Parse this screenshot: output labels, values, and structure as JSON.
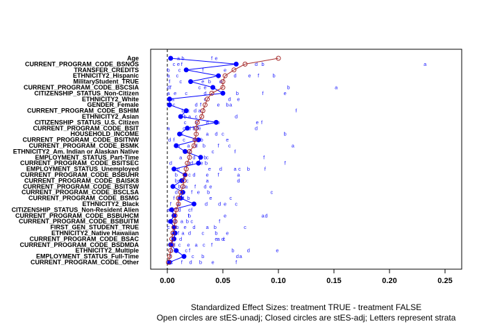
{
  "chart_data": {
    "type": "scatter",
    "xlabel": "Standardized Effect Sizes: treatment TRUE - treatment  FALSE",
    "subtitle": "Open circles are stES-unadj; Closed circles are stES-adj; Letters represent strata",
    "xlim": [
      -0.015,
      0.265
    ],
    "xticks": [
      "0.00",
      "0.05",
      "0.10",
      "0.15",
      "0.20",
      "0.25"
    ],
    "xtick_values": [
      0,
      0.05,
      0.1,
      0.15,
      0.2,
      0.25
    ],
    "reference_line": 0,
    "colors": {
      "unadjusted": "#a52a2a",
      "adjusted": "#0000ff",
      "strata": "#1a1aff",
      "reference": "#000000"
    },
    "covariates": [
      "Age",
      "CURRENT_PROGRAM_CODE_BSNOS",
      "TRANSFER_CREDITS",
      "ETHNICITY2_Hispanic",
      "MilitaryStudent_TRUE",
      "CURRENT_PROGRAM_CODE_BSCSIA",
      "CITIZENSHIP_STATUS_Non-Citizen",
      "ETHNICITY2_White",
      "GENDER_Female",
      "CURRENT_PROGRAM_CODE_BSHIM",
      "ETHNICITY2_Asian",
      "CITIZENSHIP_STATUS_U.S. Citizen",
      "CURRENT_PROGRAM_CODE_BSIT",
      "HOUSEHOLD_INCOME",
      "CURRENT_PROGRAM_CODE_BSITNW",
      "CURRENT_PROGRAM_CODE_BSMK",
      "ETHNICITY2_Am. Indian or Alaskan Native",
      "EMPLOYMENT_STATUS_Part-Time",
      "CURRENT_PROGRAM_CODE_BSITSEC",
      "EMPLOYMENT_STATUS_Unemployed",
      "CURRENT_PROGRAM_CODE_BSBUHR",
      "CURRENT_PROGRAM_CODE_BAISK8",
      "CURRENT_PROGRAM_CODE_BSITSW",
      "CURRENT_PROGRAM_CODE_BSCLSA",
      "CURRENT_PROGRAM_CODE_BSMG",
      "ETHNICITY2_Black",
      "CITIZENSHIP_STATUS_Non-Resident Alien",
      "CURRENT_PROGRAM_CODE_BSBUHCM",
      "CURRENT_PROGRAM_CODE_BSBUITM",
      "FIRST_GEN_STUDENT_TRUE",
      "ETHNICITY2_Native Hawaiian",
      "CURRENT_PROGRAM_CODE_BSAC",
      "CURRENT_PROGRAM_CODE_BSDMDA",
      "ETHNICITY2_Multiple",
      "EMPLOYMENT_STATUS_Full-Time",
      "CURRENT_PROGRAM_CODE_Other"
    ],
    "unadjusted": [
      0.1,
      0.07,
      0.06,
      0.052,
      0.05,
      0.05,
      0.04,
      0.036,
      0.034,
      0.032,
      0.031,
      0.027,
      0.026,
      0.026,
      0.025,
      0.024,
      0.02,
      0.02,
      0.018,
      0.017,
      0.016,
      0.015,
      0.014,
      0.012,
      0.01,
      0.01,
      0.008,
      0.007,
      0.007,
      0.006,
      0.005,
      0.004,
      0.004,
      0.003,
      0.002,
      0.001
    ],
    "adjusted": [
      0.003,
      0.062,
      0.017,
      0.046,
      0.021,
      0.041,
      0.05,
      0.002,
      0.002,
      0.017,
      0.012,
      0.044,
      0.018,
      0.011,
      0.028,
      0.008,
      0.016,
      0.03,
      0.028,
      0.006,
      0.016,
      0.013,
      0.005,
      0.014,
      0.012,
      0.024,
      0.004,
      0.006,
      0.003,
      0.006,
      0.007,
      0.006,
      0.003,
      0.008,
      0.015,
      0.002
    ],
    "strata_letters": [
      [
        [
          "a",
          0.01
        ],
        [
          "b",
          0.014
        ],
        [
          "f",
          0.04
        ],
        [
          "e",
          0.044
        ]
      ],
      [
        [
          "c",
          0.006
        ],
        [
          "e",
          0.01
        ],
        [
          "f",
          0.013
        ],
        [
          "d",
          0.08
        ],
        [
          "b",
          0.086
        ],
        [
          "a",
          0.232
        ]
      ],
      [
        [
          "b",
          0.001
        ],
        [
          "c",
          0.011
        ],
        [
          "f",
          0.032
        ],
        [
          "e",
          0.052
        ]
      ],
      [
        [
          "a",
          0.001
        ],
        [
          "c",
          0.009
        ],
        [
          "d",
          0.061
        ],
        [
          "e",
          0.074
        ],
        [
          "f",
          0.082
        ],
        [
          "b",
          0.096
        ]
      ],
      [
        [
          "f",
          0.002
        ],
        [
          "c",
          0.012
        ],
        [
          "e",
          0.032
        ],
        [
          "b",
          0.038
        ],
        [
          "d",
          0.048
        ]
      ],
      [
        [
          "d",
          0.001
        ],
        [
          "f",
          0.003
        ],
        [
          "c",
          0.029
        ],
        [
          "e",
          0.034
        ],
        [
          "b",
          0.109
        ],
        [
          "a",
          0.152
        ]
      ],
      [
        [
          "a",
          0.001
        ],
        [
          "e",
          0.007
        ],
        [
          "c",
          0.017
        ],
        [
          "d",
          0.034
        ],
        [
          "b",
          0.063
        ],
        [
          "f",
          0.086
        ],
        [
          "e",
          0.106
        ]
      ],
      [
        [
          "b",
          0.002
        ],
        [
          "a",
          0.005
        ],
        [
          "c",
          0.034
        ],
        [
          "d",
          0.056
        ],
        [
          "e",
          0.064
        ]
      ],
      [
        [
          "c",
          0.006
        ],
        [
          "d",
          0.026
        ],
        [
          "f",
          0.03
        ],
        [
          "e",
          0.046
        ],
        [
          "b",
          0.054
        ],
        [
          "a",
          0.057
        ]
      ],
      [
        [
          "b",
          0.014
        ],
        [
          "c",
          0.019
        ],
        [
          "d",
          0.025
        ],
        [
          "a",
          0.029
        ],
        [
          "f",
          0.116
        ]
      ],
      [
        [
          "b",
          0.016
        ],
        [
          "a",
          0.02
        ],
        [
          "c",
          0.026
        ],
        [
          "d",
          0.062
        ]
      ],
      [
        [
          "c",
          0.016
        ],
        [
          "a",
          0.026
        ],
        [
          "d",
          0.036
        ],
        [
          "b",
          0.046
        ],
        [
          "e",
          0.081
        ],
        [
          "f",
          0.085
        ]
      ],
      [
        [
          "a",
          0.001
        ],
        [
          "c",
          0.015
        ],
        [
          "d",
          0.02
        ],
        [
          "b",
          0.024
        ],
        [
          "f",
          0.027
        ],
        [
          "e",
          0.029
        ],
        [
          "d",
          0.08
        ]
      ],
      [
        [
          "e",
          0.013
        ],
        [
          "a",
          0.036
        ],
        [
          "d",
          0.044
        ],
        [
          "c",
          0.05
        ],
        [
          "b",
          0.106
        ]
      ],
      [
        [
          "d",
          0.002
        ],
        [
          "f",
          0.006
        ],
        [
          "c",
          0.015
        ],
        [
          "a",
          0.024
        ],
        [
          "b",
          0.031
        ],
        [
          "e",
          0.054
        ]
      ],
      [
        [
          "b",
          0.01
        ],
        [
          "a",
          0.019
        ],
        [
          "d",
          0.026
        ],
        [
          "b",
          0.033
        ],
        [
          "f",
          0.046
        ],
        [
          "c",
          0.056
        ],
        [
          "a",
          0.113
        ]
      ],
      [
        [
          "e",
          0.017
        ],
        [
          "a",
          0.018
        ],
        [
          "b",
          0.021
        ],
        [
          "c",
          0.041
        ],
        [
          "f",
          0.061
        ]
      ],
      [
        [
          "a",
          0.012
        ],
        [
          "d",
          0.024
        ],
        [
          "e",
          0.03
        ],
        [
          "b",
          0.034
        ],
        [
          "c",
          0.036
        ],
        [
          "f",
          0.087
        ]
      ],
      [
        [
          "d",
          0.003
        ],
        [
          "c",
          0.02
        ],
        [
          "d",
          0.022
        ],
        [
          "e",
          0.031
        ],
        [
          "b",
          0.035
        ],
        [
          "f",
          0.106
        ]
      ],
      [
        [
          "e",
          0.01
        ],
        [
          "e",
          0.038
        ],
        [
          "d",
          0.048
        ],
        [
          "a",
          0.061
        ],
        [
          "c",
          0.065
        ],
        [
          "b",
          0.073
        ],
        [
          "f",
          0.088
        ]
      ],
      [
        [
          "b",
          0.008
        ],
        [
          "c",
          0.02
        ],
        [
          "d",
          0.024
        ],
        [
          "e",
          0.036
        ],
        [
          "f",
          0.046
        ],
        [
          "a",
          0.064
        ]
      ],
      [
        [
          "b",
          0.008
        ],
        [
          "e",
          0.011
        ],
        [
          "f",
          0.013
        ],
        [
          "c",
          0.018
        ],
        [
          "a",
          0.036
        ],
        [
          "d",
          0.064
        ]
      ],
      [
        [
          "b",
          0.011
        ],
        [
          "c",
          0.015
        ],
        [
          "a",
          0.017
        ],
        [
          "f",
          0.025
        ],
        [
          "d",
          0.034
        ],
        [
          "e",
          0.039
        ]
      ],
      [
        [
          "d",
          0.008
        ],
        [
          "a",
          0.014
        ],
        [
          "f",
          0.022
        ],
        [
          "e",
          0.028
        ],
        [
          "b",
          0.037
        ],
        [
          "c",
          0.094
        ]
      ],
      [
        [
          "f",
          0.006
        ],
        [
          "a",
          0.01
        ],
        [
          "d",
          0.014
        ],
        [
          "b",
          0.019
        ],
        [
          "e",
          0.039
        ],
        [
          "c",
          0.057
        ]
      ],
      [
        [
          "f",
          0.003
        ],
        [
          "a",
          0.01
        ],
        [
          "d",
          0.035
        ],
        [
          "d",
          0.047
        ],
        [
          "e",
          0.052
        ],
        [
          "c",
          0.062
        ]
      ],
      [
        [
          "a",
          0.001
        ],
        [
          "b",
          0.003
        ],
        [
          "e",
          0.005
        ],
        [
          "d",
          0.011
        ],
        [
          "c",
          0.02
        ],
        [
          "f",
          0.022
        ]
      ],
      [
        [
          "d",
          0.007
        ],
        [
          "f",
          0.019
        ],
        [
          "b",
          0.02
        ],
        [
          "e",
          0.052
        ],
        [
          "a",
          0.086
        ],
        [
          "d",
          0.089
        ]
      ],
      [
        [
          "a",
          0.001
        ],
        [
          "d",
          0.007
        ],
        [
          "a",
          0.013
        ],
        [
          "b",
          0.018
        ],
        [
          "c",
          0.022
        ],
        [
          "f",
          0.047
        ]
      ],
      [
        [
          "c",
          0.001
        ],
        [
          "b",
          0.009
        ],
        [
          "e",
          0.016
        ],
        [
          "d",
          0.024
        ],
        [
          "a",
          0.036
        ],
        [
          "b",
          0.043
        ],
        [
          "c",
          0.07
        ]
      ],
      [
        [
          "e",
          0.005
        ],
        [
          "f",
          0.01
        ],
        [
          "a",
          0.014
        ],
        [
          "d",
          0.02
        ],
        [
          "c",
          0.032
        ],
        [
          "b",
          0.044
        ],
        [
          "e",
          0.054
        ]
      ],
      [
        [
          "b",
          0.005
        ],
        [
          "d",
          0.012
        ],
        [
          "e",
          0.044
        ],
        [
          "a",
          0.046
        ],
        [
          "d",
          0.05
        ],
        [
          "c",
          0.051
        ]
      ],
      [
        [
          "b",
          0.004
        ],
        [
          "d",
          0.006
        ],
        [
          "c",
          0.011
        ],
        [
          "e",
          0.019
        ],
        [
          "a",
          0.026
        ],
        [
          "c",
          0.033
        ],
        [
          "f",
          0.04
        ]
      ],
      [
        [
          "a",
          0.004
        ],
        [
          "c",
          0.017
        ],
        [
          "f",
          0.02
        ],
        [
          "b",
          0.059
        ],
        [
          "d",
          0.073
        ],
        [
          "e",
          0.099
        ]
      ],
      [
        [
          "f",
          0.003
        ],
        [
          "c",
          0.023
        ],
        [
          "b",
          0.032
        ],
        [
          "d",
          0.063
        ],
        [
          "a",
          0.066
        ]
      ],
      [
        [
          "c",
          0.004
        ],
        [
          "f",
          0.013
        ],
        [
          "d",
          0.021
        ],
        [
          "b",
          0.03
        ],
        [
          "e",
          0.041
        ],
        [
          "f",
          0.062
        ]
      ]
    ]
  }
}
